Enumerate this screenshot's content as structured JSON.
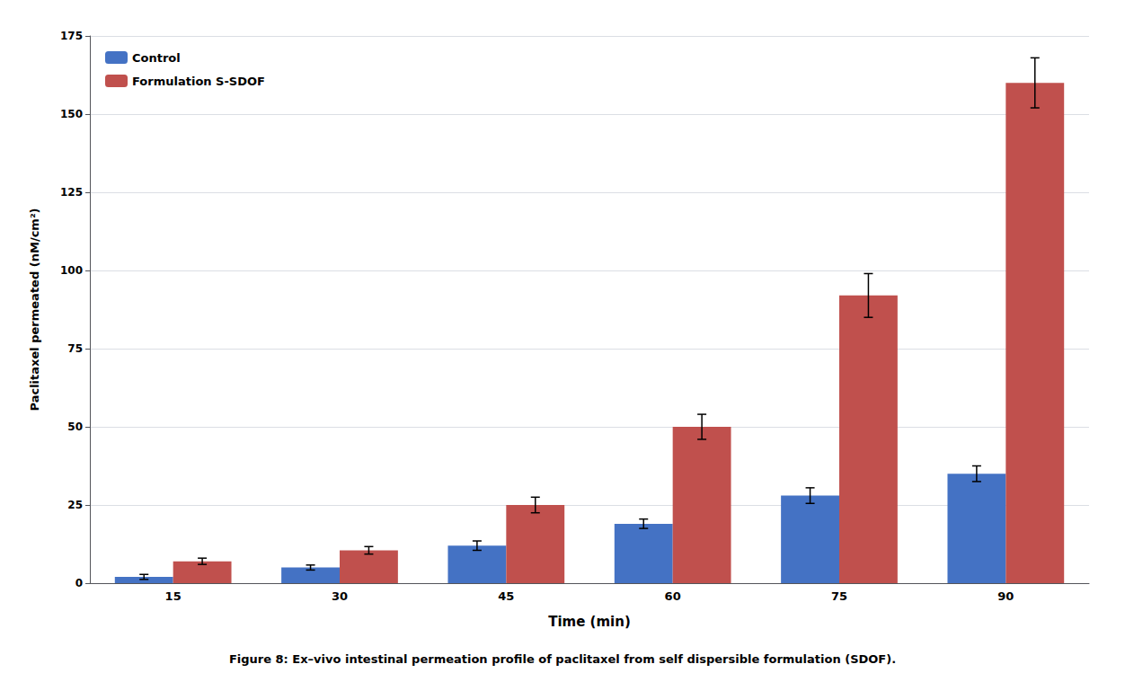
{
  "chart_data": {
    "type": "bar",
    "title": "Figure 8: Ex–vivo intestinal permeation profile of paclitaxel from self dispersible formulation (SDOF).",
    "xlabel": "Time (min)",
    "ylabel": "Paclitaxel permeated (nM/cm²)",
    "categories": [
      "15",
      "30",
      "45",
      "60",
      "75",
      "90"
    ],
    "series": [
      {
        "name": "Control",
        "color": "#4472C4",
        "values": [
          2.0,
          5.0,
          12.0,
          19.0,
          28.0,
          35.0
        ],
        "errors": [
          0.8,
          0.8,
          1.5,
          1.5,
          2.5,
          2.5
        ]
      },
      {
        "name": "Formulation S-SDOF",
        "color": "#C0504D",
        "values": [
          7.0,
          10.5,
          25.0,
          50.0,
          92.0,
          160.0
        ],
        "errors": [
          1.0,
          1.2,
          2.5,
          4.0,
          7.0,
          8.0
        ]
      }
    ],
    "ylim": [
      0,
      175
    ],
    "yticks": [
      0,
      25,
      50,
      75,
      100,
      125,
      150,
      175
    ],
    "grid": true,
    "legend": "upper left"
  }
}
